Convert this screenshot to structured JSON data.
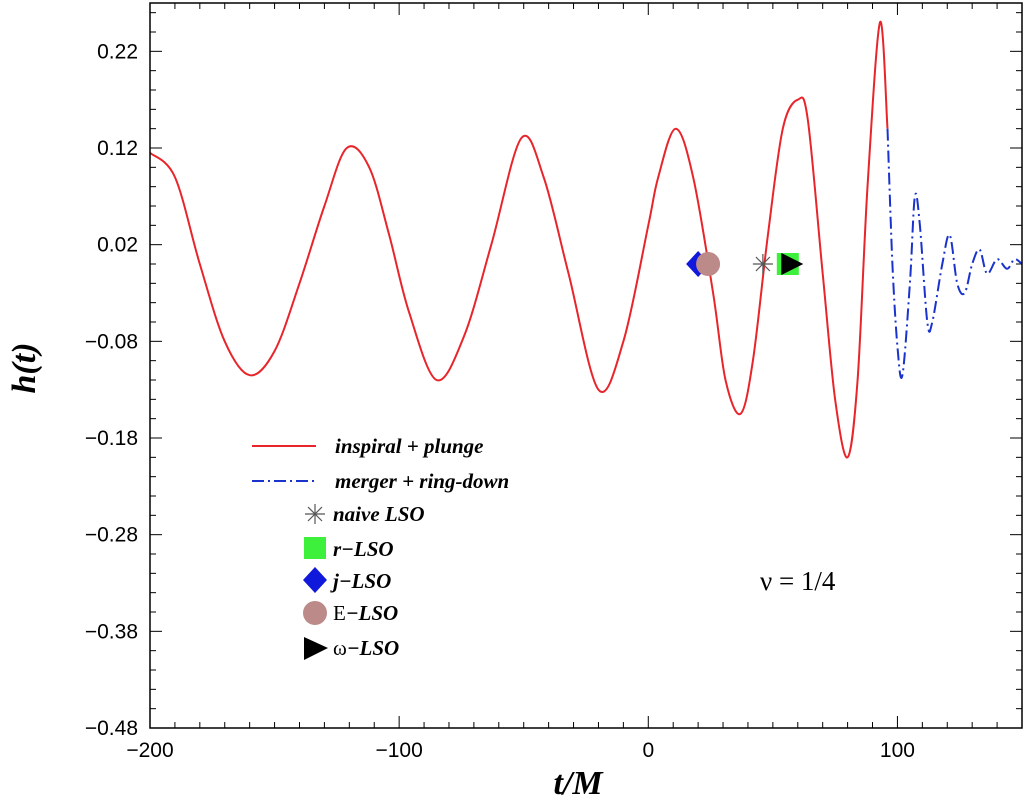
{
  "chart_data": {
    "type": "line",
    "xlabel": "t/M",
    "ylabel": "h(t)",
    "xlim": [
      -200,
      150
    ],
    "ylim": [
      -0.48,
      0.27
    ],
    "xticks": [
      -200,
      -100,
      0,
      100
    ],
    "xtick_labels": [
      "−200",
      "−100",
      "0",
      "100"
    ],
    "yticks": [
      0.22,
      0.12,
      0.02,
      -0.08,
      -0.18,
      -0.28,
      -0.38,
      -0.48
    ],
    "ytick_labels": [
      "0.22",
      "0.12",
      "0.02",
      "−0.08",
      "−0.18",
      "−0.28",
      "−0.38",
      "−0.48"
    ],
    "grid": false,
    "legend_position": "lower-left",
    "annotation": "ν = 1/4",
    "series": [
      {
        "name": "inspiral + plunge",
        "style": "solid",
        "color": "#e8252b",
        "x": [
          -200,
          -190,
          -180,
          -170,
          -160,
          -150,
          -140,
          -130,
          -121,
          -112,
          -104,
          -96,
          -85,
          -74,
          -63,
          -51,
          -42,
          -32,
          -20,
          -10,
          0,
          4,
          11,
          18,
          26,
          31,
          37,
          42,
          48,
          54,
          60,
          64,
          70,
          75,
          80,
          84,
          88,
          93,
          96
        ],
        "y": [
          0.115,
          0.09,
          0.0,
          -0.08,
          -0.115,
          -0.09,
          -0.02,
          0.06,
          0.12,
          0.1,
          0.03,
          -0.05,
          -0.12,
          -0.075,
          0.02,
          0.13,
          0.09,
          -0.01,
          -0.13,
          -0.08,
          0.04,
          0.09,
          0.14,
          0.09,
          -0.03,
          -0.12,
          -0.155,
          -0.1,
          0.03,
          0.14,
          0.17,
          0.15,
          -0.01,
          -0.14,
          -0.2,
          -0.12,
          0.08,
          0.25,
          0.14
        ]
      },
      {
        "name": "merger + ring-down",
        "style": "dash-dot",
        "color": "#1a33cc",
        "x": [
          96,
          98,
          100,
          102,
          105,
          107,
          109,
          112,
          114,
          118,
          121,
          124,
          127,
          130,
          133,
          136,
          140,
          144,
          147,
          150
        ],
        "y": [
          0.14,
          0.0,
          -0.085,
          -0.115,
          -0.02,
          0.07,
          0.04,
          -0.06,
          -0.06,
          0.0,
          0.03,
          -0.02,
          -0.03,
          0.0,
          0.015,
          -0.01,
          0.005,
          -0.005,
          0.005,
          0.0
        ]
      }
    ],
    "markers": [
      {
        "name": "naive LSO",
        "symbol": "asterisk",
        "color": "#555555",
        "x": 46,
        "y": 0.0
      },
      {
        "name": "r−LSO",
        "symbol": "square",
        "color": "#3cf03c",
        "x": 56,
        "y": 0.0
      },
      {
        "name": "j−LSO",
        "symbol": "diamond",
        "color": "#1018dc",
        "x": 20,
        "y": 0.0
      },
      {
        "name": "E−LSO",
        "symbol": "circle",
        "color": "#bc8a88",
        "x": 24,
        "y": 0.0
      },
      {
        "name": "ω−LSO",
        "symbol": "triangle-right",
        "color": "#000000",
        "x": 57,
        "y": 0.0
      }
    ]
  },
  "legend": {
    "line_entries": [
      {
        "label": "inspiral + plunge"
      },
      {
        "label": "merger + ring-down"
      }
    ],
    "marker_entries": [
      {
        "label_prefix": "",
        "label_main": "naive LSO"
      },
      {
        "label_prefix": "",
        "label_main": "r−LSO"
      },
      {
        "label_prefix": "",
        "label_main": "j−LSO"
      },
      {
        "label_prefix": "E",
        "label_main": "−LSO"
      },
      {
        "label_prefix": "ω",
        "label_main": "−LSO"
      }
    ]
  },
  "colors": {
    "red_line": "#e8252b",
    "blue_line": "#1a33cc",
    "axis": "#000000"
  }
}
